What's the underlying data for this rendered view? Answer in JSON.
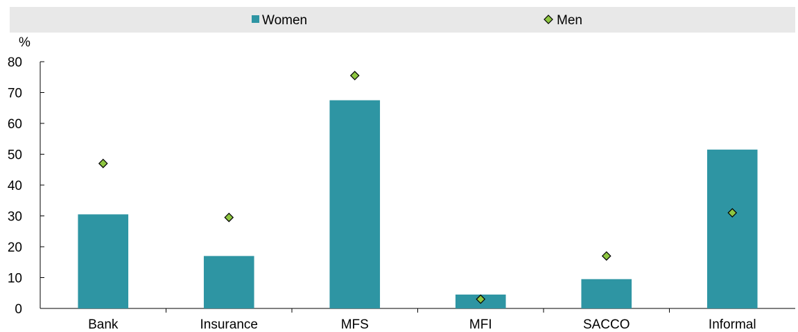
{
  "chart_data": {
    "type": "bar",
    "unit_label": "%",
    "categories": [
      "Bank",
      "Insurance",
      "MFS",
      "MFI",
      "SACCO",
      "Informal"
    ],
    "series": [
      {
        "name": "Women",
        "type": "bar",
        "color": "#2e95a3",
        "values": [
          30.5,
          17,
          67.5,
          4.5,
          9.5,
          51.5
        ]
      },
      {
        "name": "Men",
        "type": "marker",
        "marker": "diamond",
        "color": "#8ec641",
        "values": [
          47,
          29.5,
          75.5,
          3,
          17,
          31
        ]
      }
    ],
    "ylim": [
      0,
      80
    ],
    "yticks": [
      0,
      10,
      20,
      30,
      40,
      50,
      60,
      70,
      80
    ],
    "xlabel": "",
    "ylabel": "",
    "legend": {
      "position": "top",
      "background": "#e8e8e8"
    },
    "grid": false
  }
}
